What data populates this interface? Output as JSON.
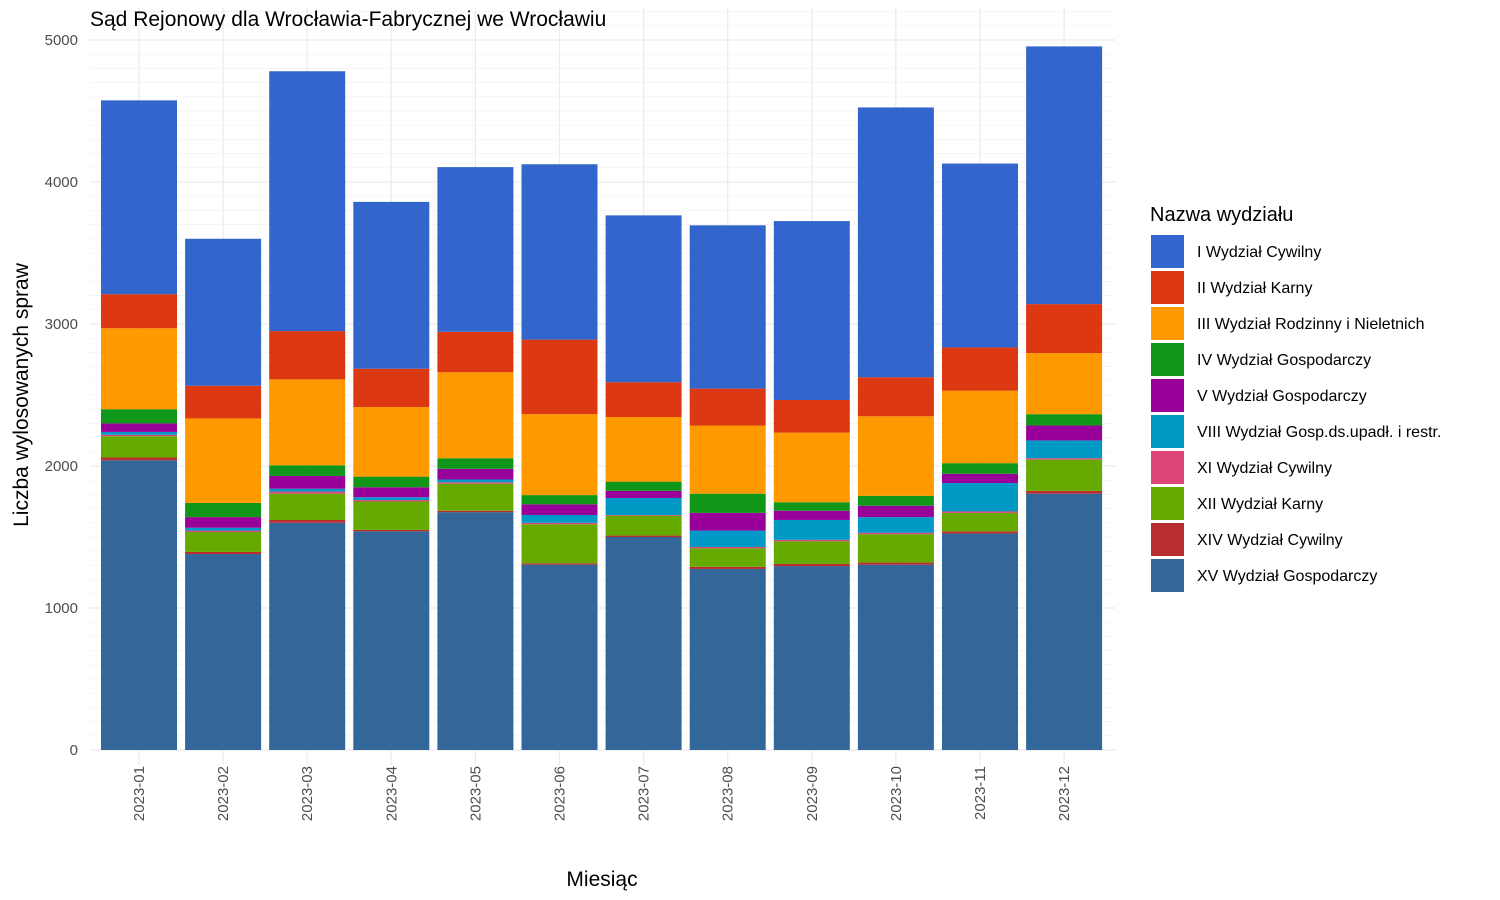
{
  "chart_data": {
    "type": "bar",
    "stacked": true,
    "title": "Sąd Rejonowy dla Wrocławia-Fabrycznej we Wrocławiu",
    "xlabel": "Miesiąc",
    "ylabel": "Liczba wylosowanych spraw",
    "ylim": [
      0,
      5000
    ],
    "y_ticks": [
      0,
      1000,
      2000,
      3000,
      4000,
      5000
    ],
    "grid": true,
    "legend_title": "Nazwa wydziału",
    "legend_position": "right",
    "categories": [
      "2023-01",
      "2023-02",
      "2023-03",
      "2023-04",
      "2023-05",
      "2023-06",
      "2023-07",
      "2023-08",
      "2023-09",
      "2023-10",
      "2023-11",
      "2023-12"
    ],
    "series": [
      {
        "name": "XV Wydział Gospodarczy",
        "color": "#336699",
        "values": [
          2040,
          1380,
          1600,
          1540,
          1675,
          1305,
          1500,
          1275,
          1295,
          1305,
          1525,
          1805
        ]
      },
      {
        "name": "XIV Wydział Cywilny",
        "color": "#b82e2e",
        "values": [
          20,
          15,
          20,
          10,
          10,
          10,
          10,
          15,
          15,
          15,
          15,
          20
        ]
      },
      {
        "name": "XII Wydział Karny",
        "color": "#66aa00",
        "values": [
          150,
          140,
          185,
          200,
          190,
          275,
          140,
          130,
          160,
          200,
          130,
          220
        ]
      },
      {
        "name": "XI Wydział Cywilny",
        "color": "#dd4477",
        "values": [
          10,
          10,
          15,
          10,
          10,
          10,
          5,
          10,
          10,
          10,
          10,
          10
        ]
      },
      {
        "name": "VIII Wydział Gosp.ds.upadł. i restr.",
        "color": "#0099c6",
        "values": [
          20,
          20,
          20,
          20,
          20,
          55,
          120,
          115,
          140,
          110,
          200,
          125
        ]
      },
      {
        "name": "V Wydział Gospodarczy",
        "color": "#990099",
        "values": [
          60,
          75,
          90,
          70,
          75,
          75,
          50,
          125,
          65,
          80,
          65,
          105
        ]
      },
      {
        "name": "IV Wydział Gospodarczy",
        "color": "#109618",
        "values": [
          100,
          100,
          75,
          75,
          75,
          65,
          65,
          135,
          60,
          70,
          75,
          80
        ]
      },
      {
        "name": "III Wydział Rodzinny i Nieletnich",
        "color": "#ff9900",
        "values": [
          570,
          595,
          605,
          490,
          605,
          570,
          455,
          480,
          490,
          560,
          510,
          430
        ]
      },
      {
        "name": "II Wydział Karny",
        "color": "#dc3912",
        "values": [
          240,
          230,
          340,
          270,
          285,
          525,
          245,
          260,
          230,
          275,
          305,
          345
        ]
      },
      {
        "name": "I Wydział Cywilny",
        "color": "#3366cc",
        "values": [
          1365,
          1035,
          1830,
          1175,
          1160,
          1235,
          1175,
          1150,
          1260,
          1900,
          1295,
          1815
        ]
      }
    ]
  }
}
